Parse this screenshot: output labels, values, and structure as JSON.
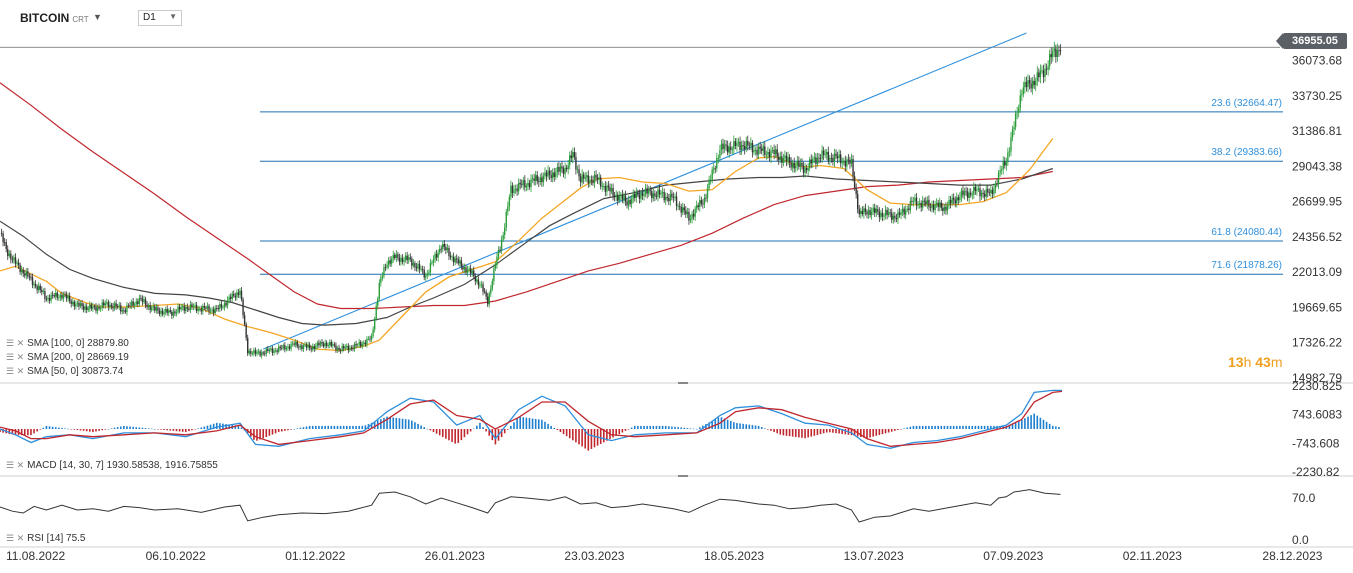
{
  "header": {
    "symbol": "BITCOIN",
    "source": "CRT",
    "timeframe": "D1"
  },
  "last_price": "36955.05",
  "countdown": {
    "h": "13",
    "h_unit": "h",
    "m": "43",
    "m_unit": "m"
  },
  "indicators": {
    "sma100": "SMA [100, 0] 28879.80",
    "sma200": "SMA [200, 0] 28669.19",
    "sma50": "SMA [50, 0] 30873.74",
    "macd": "MACD [14, 30, 7] 1930.58538,   1916.75855",
    "rsi": "RSI [14] 75.5"
  },
  "colors": {
    "up": "#2a9d3a",
    "down": "#333333",
    "sma50": "#f5a623",
    "sma100": "#444444",
    "sma200": "#c0272d",
    "fib": "#1f6fb2",
    "trend": "#2e8fdc",
    "macd": "#2e8fdc",
    "signal": "#c0272d",
    "hist_pos": "#1f7fcf",
    "hist_neg": "#c0272d"
  },
  "chart_data": {
    "type": "candlestick",
    "x_ticks": [
      "11.08.2022",
      "06.10.2022",
      "01.12.2022",
      "26.01.2023",
      "23.03.2023",
      "18.05.2023",
      "13.07.2023",
      "07.09.2023",
      "02.11.2023",
      "28.12.2023"
    ],
    "y_ticks": [
      "36073.68",
      "33730.25",
      "31386.81",
      "29043.38",
      "26699.95",
      "24356.52",
      "22013.09",
      "19669.65",
      "17326.22",
      "14982.79"
    ],
    "ylim": [
      14982.79,
      38100
    ],
    "fib_levels": [
      {
        "label": "23.6 (32664.47)",
        "value": 32664.47
      },
      {
        "label": "38.2 (29383.66)",
        "value": 29383.66
      },
      {
        "label": "61.8 (24080.44)",
        "value": 24080.44
      },
      {
        "label": "71.6 (21878.26)",
        "value": 21878.26
      }
    ],
    "price_path": [
      [
        0,
        24600
      ],
      [
        4,
        23500
      ],
      [
        10,
        22600
      ],
      [
        20,
        21500
      ],
      [
        30,
        20300
      ],
      [
        40,
        20500
      ],
      [
        50,
        19800
      ],
      [
        60,
        19600
      ],
      [
        70,
        19900
      ],
      [
        80,
        19500
      ],
      [
        90,
        20200
      ],
      [
        100,
        19500
      ],
      [
        110,
        19300
      ],
      [
        120,
        19700
      ],
      [
        140,
        19500
      ],
      [
        155,
        20800
      ],
      [
        160,
        16800
      ],
      [
        165,
        16600
      ],
      [
        180,
        16900
      ],
      [
        190,
        17200
      ],
      [
        200,
        17000
      ],
      [
        210,
        17300
      ],
      [
        220,
        16900
      ],
      [
        230,
        17100
      ],
      [
        240,
        17600
      ],
      [
        245,
        21200
      ],
      [
        250,
        22700
      ],
      [
        255,
        23000
      ],
      [
        265,
        22800
      ],
      [
        275,
        21800
      ],
      [
        285,
        23800
      ],
      [
        295,
        22700
      ],
      [
        305,
        21900
      ],
      [
        310,
        21200
      ],
      [
        315,
        20100
      ],
      [
        320,
        22500
      ],
      [
        325,
        24600
      ],
      [
        330,
        27500
      ],
      [
        340,
        27900
      ],
      [
        355,
        28500
      ],
      [
        365,
        28900
      ],
      [
        370,
        29800
      ],
      [
        375,
        28200
      ],
      [
        385,
        28200
      ],
      [
        395,
        27300
      ],
      [
        405,
        26700
      ],
      [
        415,
        27300
      ],
      [
        425,
        27200
      ],
      [
        435,
        26900
      ],
      [
        445,
        25600
      ],
      [
        455,
        26900
      ],
      [
        465,
        30200
      ],
      [
        470,
        30300
      ],
      [
        480,
        30500
      ],
      [
        490,
        30100
      ],
      [
        500,
        29900
      ],
      [
        510,
        29300
      ],
      [
        520,
        28900
      ],
      [
        530,
        29800
      ],
      [
        540,
        29600
      ],
      [
        550,
        29200
      ],
      [
        555,
        25800
      ],
      [
        560,
        26100
      ],
      [
        570,
        25900
      ],
      [
        580,
        25700
      ],
      [
        590,
        26700
      ],
      [
        600,
        26500
      ],
      [
        610,
        26300
      ],
      [
        620,
        27100
      ],
      [
        630,
        27400
      ],
      [
        640,
        27200
      ],
      [
        645,
        28400
      ],
      [
        650,
        29500
      ],
      [
        655,
        31700
      ],
      [
        660,
        34200
      ],
      [
        665,
        34500
      ],
      [
        670,
        34900
      ],
      [
        675,
        35500
      ],
      [
        680,
        36500
      ],
      [
        685,
        37000
      ]
    ],
    "sma50_path": [
      [
        0,
        22100
      ],
      [
        10,
        22400
      ],
      [
        20,
        21900
      ],
      [
        30,
        21400
      ],
      [
        40,
        20600
      ],
      [
        55,
        20000
      ],
      [
        65,
        19700
      ],
      [
        80,
        19700
      ],
      [
        100,
        19800
      ],
      [
        115,
        19900
      ],
      [
        130,
        19600
      ],
      [
        145,
        18900
      ],
      [
        160,
        18400
      ],
      [
        175,
        18000
      ],
      [
        190,
        17500
      ],
      [
        205,
        16900
      ],
      [
        220,
        16800
      ],
      [
        235,
        17100
      ],
      [
        245,
        17500
      ],
      [
        260,
        19100
      ],
      [
        275,
        20700
      ],
      [
        290,
        21700
      ],
      [
        305,
        22200
      ],
      [
        320,
        22700
      ],
      [
        335,
        24100
      ],
      [
        350,
        25600
      ],
      [
        365,
        26800
      ],
      [
        375,
        27600
      ],
      [
        385,
        28200
      ],
      [
        400,
        28300
      ],
      [
        415,
        28000
      ],
      [
        430,
        27900
      ],
      [
        445,
        27400
      ],
      [
        460,
        27500
      ],
      [
        475,
        28700
      ],
      [
        490,
        29600
      ],
      [
        500,
        29700
      ],
      [
        510,
        29300
      ],
      [
        520,
        29000
      ],
      [
        530,
        29100
      ],
      [
        545,
        28900
      ],
      [
        560,
        27500
      ],
      [
        575,
        26600
      ],
      [
        590,
        26500
      ],
      [
        605,
        26500
      ],
      [
        620,
        26500
      ],
      [
        635,
        26700
      ],
      [
        650,
        27300
      ],
      [
        665,
        28800
      ],
      [
        680,
        30900
      ]
    ],
    "sma100_path": [
      [
        0,
        25400
      ],
      [
        15,
        24400
      ],
      [
        30,
        23200
      ],
      [
        45,
        22200
      ],
      [
        60,
        21600
      ],
      [
        80,
        21000
      ],
      [
        100,
        20600
      ],
      [
        120,
        20500
      ],
      [
        135,
        20300
      ],
      [
        150,
        20000
      ],
      [
        165,
        19500
      ],
      [
        180,
        19000
      ],
      [
        195,
        18600
      ],
      [
        210,
        18500
      ],
      [
        230,
        18600
      ],
      [
        250,
        19000
      ],
      [
        265,
        19700
      ],
      [
        280,
        20300
      ],
      [
        300,
        21200
      ],
      [
        320,
        22500
      ],
      [
        340,
        24000
      ],
      [
        355,
        25100
      ],
      [
        370,
        25900
      ],
      [
        390,
        26900
      ],
      [
        410,
        27300
      ],
      [
        430,
        27800
      ],
      [
        450,
        28000
      ],
      [
        470,
        28200
      ],
      [
        490,
        28300
      ],
      [
        505,
        28300
      ],
      [
        520,
        28400
      ],
      [
        540,
        28200
      ],
      [
        560,
        28100
      ],
      [
        580,
        28000
      ],
      [
        600,
        27900
      ],
      [
        620,
        27800
      ],
      [
        640,
        27800
      ],
      [
        660,
        28200
      ],
      [
        680,
        28900
      ]
    ],
    "sma200_path": [
      [
        0,
        34600
      ],
      [
        20,
        33100
      ],
      [
        40,
        31500
      ],
      [
        60,
        30000
      ],
      [
        80,
        28600
      ],
      [
        100,
        27200
      ],
      [
        120,
        25700
      ],
      [
        140,
        24300
      ],
      [
        160,
        22900
      ],
      [
        175,
        21800
      ],
      [
        190,
        20700
      ],
      [
        205,
        19900
      ],
      [
        220,
        19600
      ],
      [
        240,
        19600
      ],
      [
        260,
        19700
      ],
      [
        280,
        19800
      ],
      [
        300,
        19800
      ],
      [
        320,
        20100
      ],
      [
        340,
        20700
      ],
      [
        360,
        21400
      ],
      [
        380,
        22100
      ],
      [
        400,
        22600
      ],
      [
        420,
        23200
      ],
      [
        440,
        23800
      ],
      [
        460,
        24600
      ],
      [
        480,
        25600
      ],
      [
        500,
        26500
      ],
      [
        520,
        27100
      ],
      [
        540,
        27400
      ],
      [
        560,
        27700
      ],
      [
        580,
        27800
      ],
      [
        600,
        28000
      ],
      [
        620,
        28100
      ],
      [
        640,
        28200
      ],
      [
        660,
        28300
      ],
      [
        680,
        28700
      ]
    ],
    "trendline": [
      [
        170,
        16900
      ],
      [
        663,
        37900
      ]
    ],
    "macd": {
      "ylim": [
        -2230.82,
        2230.825
      ],
      "y_ticks": [
        "2230.825",
        "743.6083",
        "-743.608",
        "-2230.82"
      ],
      "macd_path": [
        [
          0,
          0
        ],
        [
          10,
          -300
        ],
        [
          20,
          -700
        ],
        [
          30,
          -400
        ],
        [
          45,
          -300
        ],
        [
          60,
          -500
        ],
        [
          80,
          -200
        ],
        [
          100,
          -200
        ],
        [
          120,
          -400
        ],
        [
          140,
          100
        ],
        [
          155,
          300
        ],
        [
          165,
          -800
        ],
        [
          180,
          -900
        ],
        [
          200,
          -500
        ],
        [
          220,
          -300
        ],
        [
          235,
          -100
        ],
        [
          250,
          900
        ],
        [
          265,
          1600
        ],
        [
          280,
          1400
        ],
        [
          295,
          200
        ],
        [
          310,
          700
        ],
        [
          320,
          -500
        ],
        [
          335,
          1000
        ],
        [
          350,
          1700
        ],
        [
          365,
          1200
        ],
        [
          380,
          -300
        ],
        [
          395,
          -600
        ],
        [
          410,
          -300
        ],
        [
          430,
          -200
        ],
        [
          450,
          -200
        ],
        [
          465,
          700
        ],
        [
          475,
          1100
        ],
        [
          490,
          1200
        ],
        [
          505,
          800
        ],
        [
          520,
          300
        ],
        [
          535,
          200
        ],
        [
          550,
          -200
        ],
        [
          560,
          -800
        ],
        [
          575,
          -1000
        ],
        [
          590,
          -700
        ],
        [
          605,
          -600
        ],
        [
          620,
          -400
        ],
        [
          635,
          -100
        ],
        [
          650,
          200
        ],
        [
          660,
          800
        ],
        [
          668,
          1900
        ],
        [
          680,
          2000
        ],
        [
          686,
          2000
        ]
      ],
      "signal_path": [
        [
          0,
          100
        ],
        [
          10,
          -100
        ],
        [
          20,
          -500
        ],
        [
          30,
          -500
        ],
        [
          45,
          -300
        ],
        [
          60,
          -400
        ],
        [
          80,
          -300
        ],
        [
          100,
          -200
        ],
        [
          120,
          -300
        ],
        [
          140,
          -100
        ],
        [
          155,
          200
        ],
        [
          165,
          -400
        ],
        [
          180,
          -800
        ],
        [
          200,
          -600
        ],
        [
          220,
          -400
        ],
        [
          235,
          -200
        ],
        [
          250,
          500
        ],
        [
          265,
          1300
        ],
        [
          280,
          1500
        ],
        [
          295,
          700
        ],
        [
          310,
          500
        ],
        [
          320,
          0
        ],
        [
          335,
          600
        ],
        [
          350,
          1400
        ],
        [
          365,
          1400
        ],
        [
          380,
          400
        ],
        [
          395,
          -300
        ],
        [
          410,
          -400
        ],
        [
          430,
          -300
        ],
        [
          450,
          -200
        ],
        [
          465,
          300
        ],
        [
          475,
          900
        ],
        [
          490,
          1100
        ],
        [
          505,
          1000
        ],
        [
          520,
          600
        ],
        [
          535,
          300
        ],
        [
          550,
          0
        ],
        [
          560,
          -500
        ],
        [
          575,
          -900
        ],
        [
          590,
          -800
        ],
        [
          605,
          -700
        ],
        [
          620,
          -500
        ],
        [
          635,
          -200
        ],
        [
          650,
          100
        ],
        [
          660,
          500
        ],
        [
          668,
          1400
        ],
        [
          680,
          1900
        ],
        [
          686,
          1950
        ]
      ]
    },
    "rsi": {
      "y_ticks": [
        "70.0",
        "0.0"
      ],
      "ylim": [
        0,
        100
      ],
      "path": [
        [
          0,
          55
        ],
        [
          8,
          48
        ],
        [
          15,
          45
        ],
        [
          22,
          56
        ],
        [
          30,
          50
        ],
        [
          40,
          58
        ],
        [
          50,
          50
        ],
        [
          60,
          52
        ],
        [
          70,
          48
        ],
        [
          80,
          56
        ],
        [
          90,
          54
        ],
        [
          100,
          50
        ],
        [
          115,
          52
        ],
        [
          130,
          46
        ],
        [
          145,
          55
        ],
        [
          155,
          58
        ],
        [
          160,
          32
        ],
        [
          170,
          38
        ],
        [
          180,
          42
        ],
        [
          195,
          45
        ],
        [
          210,
          44
        ],
        [
          225,
          48
        ],
        [
          240,
          58
        ],
        [
          245,
          78
        ],
        [
          255,
          80
        ],
        [
          265,
          72
        ],
        [
          275,
          60
        ],
        [
          285,
          70
        ],
        [
          295,
          62
        ],
        [
          305,
          54
        ],
        [
          315,
          45
        ],
        [
          320,
          62
        ],
        [
          330,
          72
        ],
        [
          340,
          70
        ],
        [
          355,
          66
        ],
        [
          365,
          72
        ],
        [
          375,
          60
        ],
        [
          385,
          62
        ],
        [
          395,
          54
        ],
        [
          405,
          56
        ],
        [
          415,
          60
        ],
        [
          425,
          56
        ],
        [
          435,
          52
        ],
        [
          445,
          46
        ],
        [
          455,
          58
        ],
        [
          465,
          68
        ],
        [
          475,
          66
        ],
        [
          490,
          60
        ],
        [
          500,
          58
        ],
        [
          510,
          52
        ],
        [
          520,
          54
        ],
        [
          530,
          58
        ],
        [
          540,
          60
        ],
        [
          550,
          50
        ],
        [
          555,
          30
        ],
        [
          565,
          38
        ],
        [
          575,
          40
        ],
        [
          590,
          52
        ],
        [
          600,
          48
        ],
        [
          615,
          55
        ],
        [
          630,
          62
        ],
        [
          640,
          58
        ],
        [
          645,
          70
        ],
        [
          650,
          72
        ],
        [
          655,
          80
        ],
        [
          665,
          84
        ],
        [
          675,
          78
        ],
        [
          685,
          76
        ]
      ]
    }
  }
}
